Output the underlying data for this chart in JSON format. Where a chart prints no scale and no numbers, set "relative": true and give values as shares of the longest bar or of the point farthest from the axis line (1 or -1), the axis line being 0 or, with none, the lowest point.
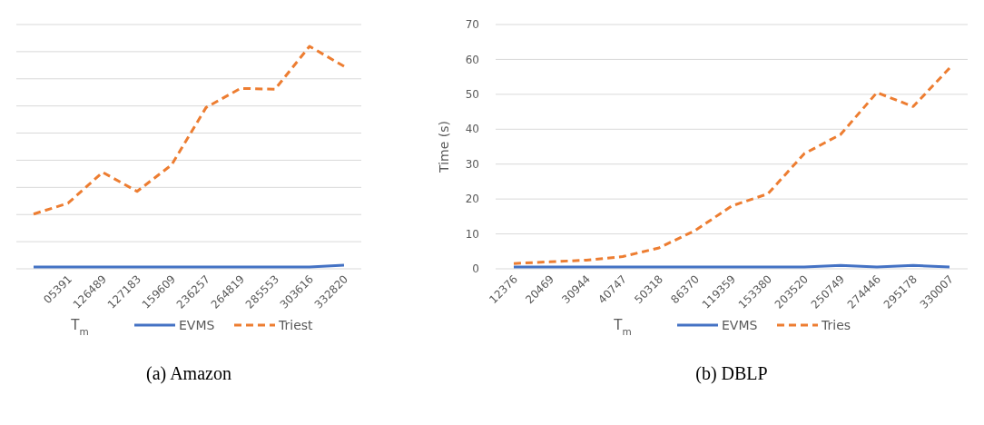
{
  "chart_data": [
    {
      "type": "line",
      "title": "(a) Amazon",
      "xlabel": "T$_{m}$",
      "relative": true,
      "categories": [
        null,
        "05391",
        "126489",
        "127183",
        "159609",
        "236257",
        "264819",
        "285553",
        "303616",
        "332820"
      ],
      "series": [
        {
          "name": "EVMS",
          "color": "#4472c4",
          "line_style": "solid",
          "values": [
            0.008,
            0.008,
            0.008,
            0.008,
            0.008,
            0.008,
            0.008,
            0.008,
            0.008,
            0.016
          ]
        },
        {
          "name": "Triest",
          "color": "#ed7d31",
          "line_style": "dashed",
          "values": [
            0.246,
            0.295,
            0.434,
            0.348,
            0.467,
            0.725,
            0.811,
            0.807,
            1,
            0.91
          ]
        }
      ],
      "grid": true,
      "legend": "bottom",
      "tick_labels": "x"
    },
    {
      "type": "line",
      "title": "(b) DBLP",
      "xlabel": "T$_{m}$",
      "ylabel": "Time (s)",
      "categories": [
        "12376",
        "20469",
        "30944",
        "40747",
        "50318",
        "86370",
        "119359",
        "153380",
        "203520",
        "250749",
        "274446",
        "295178",
        "330007"
      ],
      "series": [
        {
          "name": "EVMS",
          "color": "#4472c4",
          "line_style": "solid",
          "values": [
            0.5,
            0.5,
            0.5,
            0.5,
            0.5,
            0.5,
            0.5,
            0.5,
            0.5,
            1,
            0.5,
            1,
            0.5
          ]
        },
        {
          "name": "Tries",
          "color": "#ed7d31",
          "line_style": "dashed",
          "values": [
            1.5,
            2,
            2.5,
            3.5,
            6,
            11,
            18,
            21.5,
            33,
            38.5,
            50.5,
            46.5,
            57.5
          ]
        }
      ],
      "ylim": [
        0,
        70
      ],
      "yticks": [
        0,
        10,
        20,
        30,
        40,
        50,
        60,
        70
      ],
      "grid": "y",
      "legend": "bottom"
    }
  ]
}
